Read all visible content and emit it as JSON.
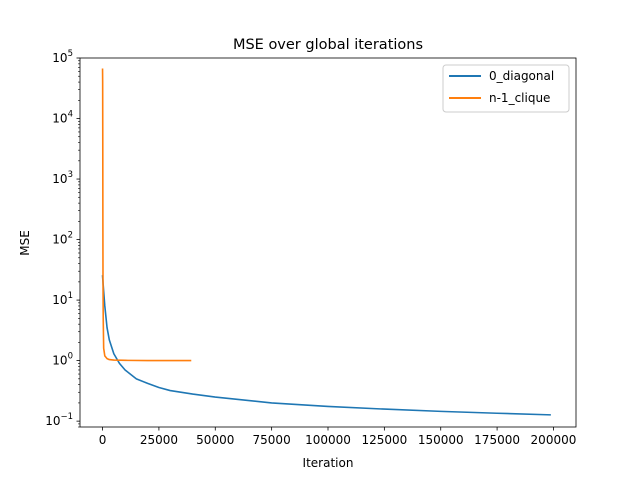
{
  "chart_data": {
    "type": "line",
    "title": "MSE over global iterations",
    "xlabel": "Iteration",
    "ylabel": "MSE",
    "xlim": [
      -10000,
      210000
    ],
    "ylim": [
      0.08,
      100000
    ],
    "yscale": "log",
    "grid": false,
    "legend_position": "top-right",
    "x_ticks": [
      0,
      25000,
      50000,
      75000,
      100000,
      125000,
      150000,
      175000,
      200000
    ],
    "x_tick_labels": [
      "0",
      "25000",
      "50000",
      "75000",
      "100000",
      "125000",
      "150000",
      "175000",
      "200000"
    ],
    "y_ticks": [
      {
        "value": 0.1,
        "base": "10",
        "exp": "−1"
      },
      {
        "value": 1,
        "base": "10",
        "exp": "0"
      },
      {
        "value": 10,
        "base": "10",
        "exp": "1"
      },
      {
        "value": 100,
        "base": "10",
        "exp": "2"
      },
      {
        "value": 1000,
        "base": "10",
        "exp": "3"
      },
      {
        "value": 10000,
        "base": "10",
        "exp": "4"
      },
      {
        "value": 100000,
        "base": "10",
        "exp": "5"
      }
    ],
    "series": [
      {
        "name": "0_diagonal",
        "color": "#1f77b4",
        "x": [
          0,
          500,
          1000,
          2000,
          3000,
          5000,
          7500,
          10000,
          15000,
          20000,
          25000,
          30000,
          40000,
          50000,
          75000,
          100000,
          125000,
          150000,
          175000,
          198500
        ],
        "y": [
          25,
          14,
          8,
          3.5,
          2.2,
          1.3,
          0.9,
          0.7,
          0.5,
          0.42,
          0.36,
          0.32,
          0.28,
          0.25,
          0.2,
          0.175,
          0.158,
          0.145,
          0.135,
          0.127
        ]
      },
      {
        "name": "n-1_clique",
        "color": "#ff7f0e",
        "x": [
          0,
          50,
          100,
          150,
          200,
          300,
          500,
          1000,
          2000,
          3000,
          5000,
          10000,
          20000,
          30000,
          39000
        ],
        "y": [
          65000,
          40000,
          5000,
          200,
          20,
          5,
          1.6,
          1.2,
          1.08,
          1.04,
          1.02,
          1.01,
          1.0,
          1.0,
          1.0
        ]
      }
    ]
  }
}
